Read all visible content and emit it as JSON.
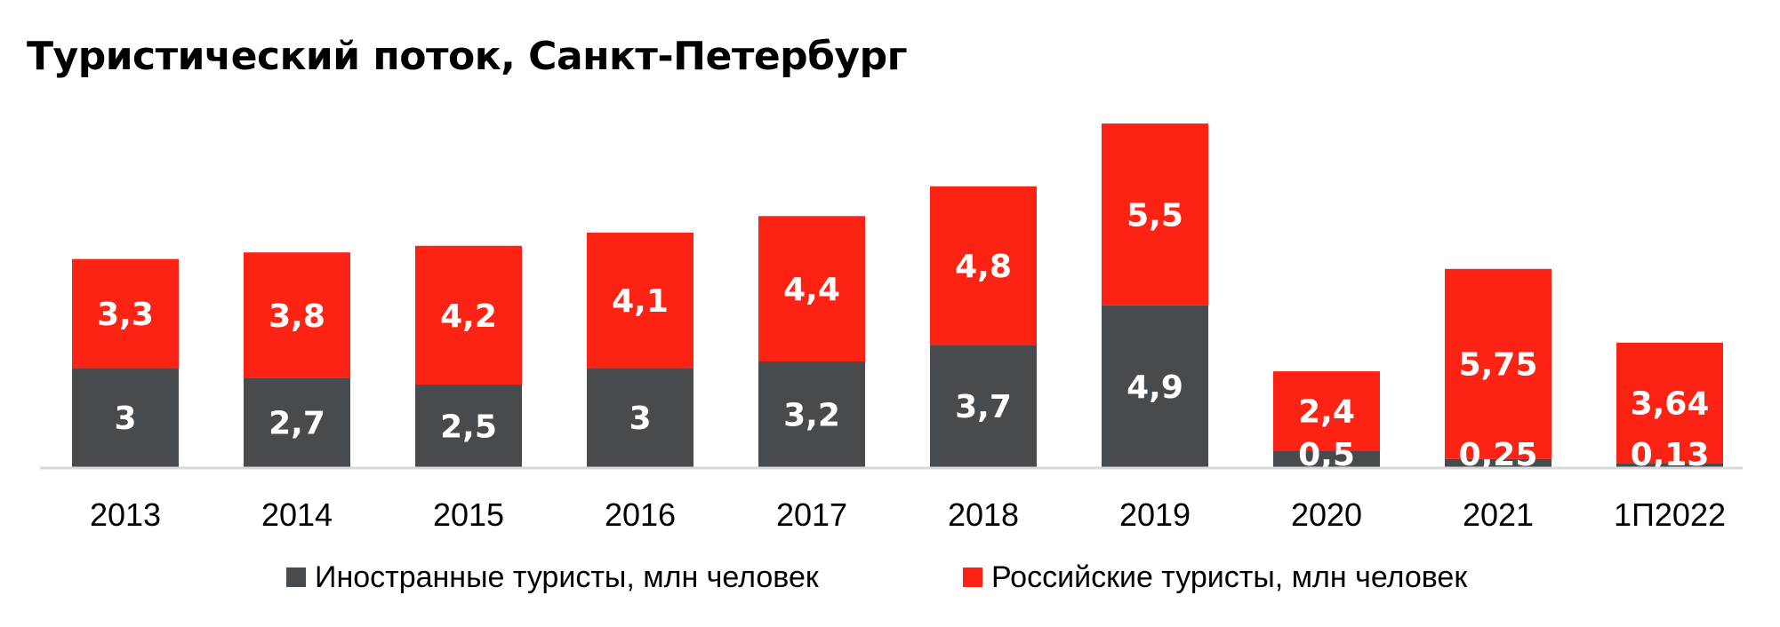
{
  "chart_data": {
    "type": "bar",
    "stacked": true,
    "title": "Туристический поток, Санкт-Петербург",
    "categories": [
      "2013",
      "2014",
      "2015",
      "2016",
      "2017",
      "2018",
      "2019",
      "2020",
      "2021",
      "1П2022"
    ],
    "series": [
      {
        "name": "Иностранные туристы, млн человек",
        "color": "#474b4e",
        "values": [
          3,
          2.7,
          2.5,
          3,
          3.2,
          3.7,
          4.9,
          0.5,
          0.25,
          0.13
        ],
        "labels": [
          "3",
          "2,7",
          "2,5",
          "3",
          "3,2",
          "3,7",
          "4,9",
          "0,5",
          "0,25",
          "0,13"
        ]
      },
      {
        "name": "Российские туристы, млн человек",
        "color": "#fc2214",
        "values": [
          3.3,
          3.8,
          4.2,
          4.1,
          4.4,
          4.8,
          5.5,
          2.4,
          5.75,
          3.64
        ],
        "labels": [
          "3,3",
          "3,8",
          "4,2",
          "4,1",
          "4,4",
          "4,8",
          "5,5",
          "2,4",
          "5,75",
          "3,64"
        ]
      }
    ],
    "xlabel": "",
    "ylabel": "",
    "y_axis_visible": false,
    "grid": false,
    "legend_position": "bottom",
    "axis_line_color": "#d9d9d9"
  }
}
